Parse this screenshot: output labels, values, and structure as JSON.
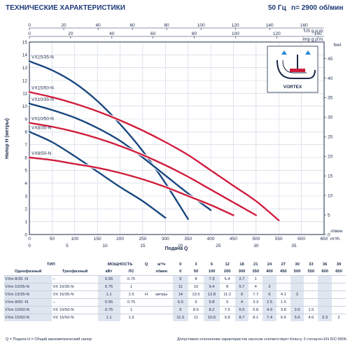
{
  "header": {
    "title": "ТЕХНИЧЕСКИЕ ХАРАКТЕРИСТИКИ",
    "freq": "50 Гц",
    "rpm": "n= 2900 об/мин"
  },
  "chart_data": {
    "type": "line",
    "xlabel": "Подача Q",
    "ylabel": "Напор H (метры)",
    "xlim": [
      0,
      650
    ],
    "ylim": [
      0,
      15
    ],
    "x_unit": "л/мин",
    "x_ticks": [
      0,
      50,
      100,
      150,
      200,
      250,
      300,
      350,
      400,
      450,
      500,
      550,
      600,
      650
    ],
    "y_ticks": [
      0,
      1,
      2,
      3,
      4,
      5,
      6,
      7,
      8,
      9,
      10,
      11,
      12,
      13,
      14,
      15
    ],
    "top_axis": {
      "unit": "US g.p.m.",
      "ticks": [
        0,
        20,
        40,
        60,
        80,
        100,
        120,
        140,
        160
      ]
    },
    "top_axis2": {
      "unit": "Imp g.p.m.",
      "ticks": [
        0,
        20,
        40,
        60,
        80,
        100,
        120,
        140
      ]
    },
    "bottom_axis2": {
      "unit": "m³/h",
      "ticks": [
        0,
        5,
        10,
        15,
        20,
        25,
        30,
        35,
        40
      ]
    },
    "right_axis": {
      "unit": "feet",
      "ticks": [
        0,
        5,
        10,
        15,
        20,
        25,
        30,
        35,
        40,
        45
      ]
    },
    "inset_label": "VORTEX",
    "series": [
      {
        "name": "VX15/35-N",
        "color": "#17477f",
        "x": [
          0,
          50,
          100,
          150,
          200,
          250,
          300,
          350
        ],
        "y": [
          13.5,
          12.8,
          11.8,
          10.4,
          8.6,
          6.5,
          4.0,
          1.2
        ]
      },
      {
        "name": "VX15/50-N",
        "color": "#d01c3c",
        "x": [
          0,
          50,
          100,
          150,
          200,
          250,
          300,
          350,
          400,
          450,
          500,
          550
        ],
        "y": [
          11.1,
          10.7,
          10.2,
          9.6,
          8.9,
          8.1,
          7.2,
          6.2,
          5.0,
          3.8,
          2.6,
          1.1
        ]
      },
      {
        "name": "VX10/35-N",
        "color": "#17477f",
        "x": [
          0,
          50,
          100,
          150,
          200,
          250,
          300,
          350,
          400
        ],
        "y": [
          10.2,
          9.7,
          9.1,
          8.3,
          7.3,
          6.0,
          4.6,
          3.2,
          1.9
        ]
      },
      {
        "name": "VX10/50-N",
        "color": "#d01c3c",
        "x": [
          0,
          50,
          100,
          150,
          200,
          250,
          300,
          350,
          400,
          450,
          500
        ],
        "y": [
          8.7,
          8.4,
          8.0,
          7.5,
          6.9,
          6.2,
          5.4,
          4.5,
          3.5,
          2.5,
          1.5
        ]
      },
      {
        "name": "VX8/35-N",
        "color": "#17477f",
        "x": [
          0,
          50,
          100,
          150,
          200,
          250,
          300
        ],
        "y": [
          8.0,
          7.2,
          6.1,
          4.9,
          3.7,
          2.6,
          1.3
        ]
      },
      {
        "name": "VX8/50-N",
        "color": "#d01c3c",
        "x": [
          0,
          50,
          100,
          150,
          200,
          250,
          300,
          350,
          400,
          450
        ],
        "y": [
          6.0,
          5.8,
          5.5,
          5.2,
          4.8,
          4.3,
          3.7,
          3.0,
          2.3,
          1.5
        ]
      }
    ]
  },
  "table": {
    "header1": {
      "type": "ТИП",
      "power": "МОЩНОСТЬ",
      "q": "Q",
      "unit_m3": "м³/ч",
      "m3": [
        0,
        3,
        6,
        12,
        18,
        21,
        24,
        27,
        30,
        33,
        36,
        39
      ]
    },
    "header2": {
      "single": "Однофазный",
      "three": "Трехфазный",
      "kw": "кВт",
      "hp": "ЛС",
      "unit_l": "л/мин",
      "lmin": [
        0,
        50,
        100,
        200,
        300,
        350,
        400,
        450,
        500,
        550,
        600,
        650
      ]
    },
    "h_label": "H",
    "h_unit": "метры",
    "rows": [
      {
        "single": "VXm 8/35 -N",
        "three": "–",
        "kw": "0.55",
        "hp": "0.75",
        "h": [
          "9",
          "8",
          "7.3",
          "5.4",
          "2.7",
          "1",
          "",
          "",
          "",
          "",
          "",
          ""
        ]
      },
      {
        "single": "VXm 10/35-N",
        "three": "VX 10/35-N",
        "kw": "0.75",
        "hp": "1",
        "h": [
          "11",
          "10",
          "9.4",
          "8",
          "5.7",
          "4",
          "2",
          "",
          "",
          "",
          "",
          ""
        ]
      },
      {
        "single": "VXm 15/35-N",
        "three": "VX 15/35-N",
        "kw": "1.1",
        "hp": "1.5",
        "h": [
          "14",
          "13.5",
          "12.8",
          "11.2",
          "9",
          "7.7",
          "6",
          "4.1",
          "2",
          "",
          "",
          ""
        ]
      },
      {
        "single": "VXm 8/50 -N",
        "three": "–",
        "kw": "0.55",
        "hp": "0.75",
        "h": [
          "6.5",
          "6",
          "5.8",
          "5",
          "4",
          "3.3",
          "2.5",
          "1.5",
          "",
          "",
          "",
          ""
        ]
      },
      {
        "single": "VXm 10/50-N",
        "three": "VX 10/50-N",
        "kw": "0.75",
        "hp": "1",
        "h": [
          "9",
          "8.5",
          "8.2",
          "7.5",
          "6.5",
          "5.8",
          "4.9",
          "3.8",
          "2.6",
          "1.5",
          "",
          ""
        ]
      },
      {
        "single": "VXm 15/50-N",
        "three": "VX 15/50-N",
        "kw": "1.1",
        "hp": "1.5",
        "h": [
          "11.5",
          "11",
          "10.6",
          "9.8",
          "8.7",
          "8.1",
          "7.4",
          "6.6",
          "5.6",
          "4.6",
          "3.3",
          "2"
        ]
      }
    ]
  },
  "footer": {
    "left": "Q = Подача  H = Общий манометрический напор",
    "right": "Допустимое отклонение характеристик насосов соответствует Классу 3 согласно EN ISO 9906."
  }
}
